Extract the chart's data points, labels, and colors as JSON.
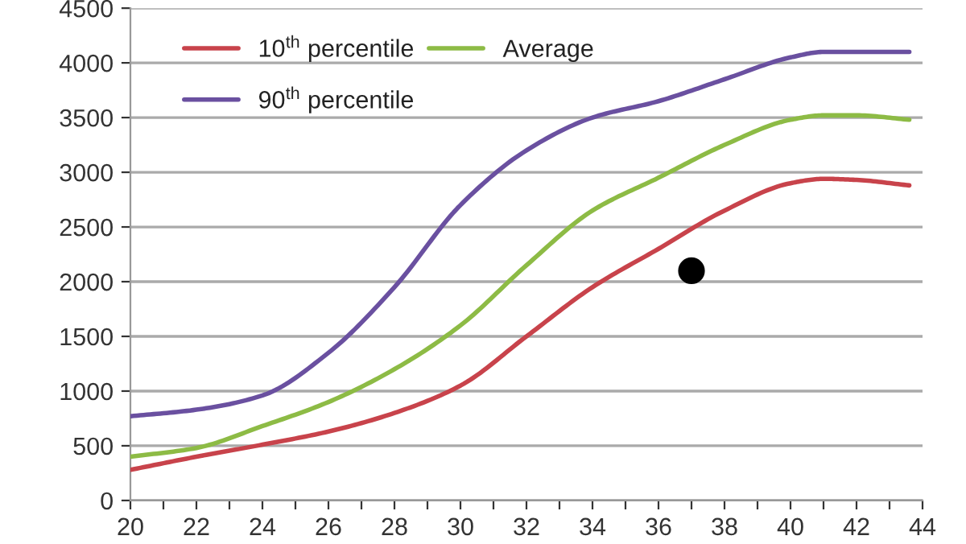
{
  "chart_data": {
    "type": "line",
    "xlim": [
      20,
      44
    ],
    "ylim": [
      0,
      4500
    ],
    "xticks": [
      20,
      {
        "value": 21,
        "label": null
      },
      22,
      {
        "value": 23,
        "label": null
      },
      24,
      {
        "value": 25,
        "label": null
      },
      26,
      {
        "value": 27,
        "label": null
      },
      28,
      {
        "value": 29,
        "label": null
      },
      30,
      {
        "value": 31,
        "label": null
      },
      32,
      {
        "value": 33,
        "label": null
      },
      34,
      {
        "value": 35,
        "label": null
      },
      36,
      {
        "value": 37,
        "label": null
      },
      38,
      {
        "value": 39,
        "label": null
      },
      40,
      {
        "value": 41,
        "label": null
      },
      42,
      {
        "value": 43,
        "label": null
      },
      44
    ],
    "yticks": [
      0,
      500,
      1000,
      1500,
      2000,
      2500,
      3000,
      3500,
      4000,
      4500
    ],
    "grid": "y",
    "legend": "top left",
    "marker": "none",
    "line_style": "solid",
    "series": [
      {
        "name": "10$^{th}$ percentile",
        "color": "#c8434b",
        "x": [
          20,
          22,
          24,
          26,
          28,
          30,
          32,
          34,
          36,
          38,
          40,
          41,
          42,
          43.6
        ],
        "values": [
          280,
          400,
          510,
          630,
          800,
          1050,
          1500,
          1950,
          2300,
          2650,
          2900,
          2940,
          2930,
          2880
        ]
      },
      {
        "name": "Average",
        "color": "#8dbb45",
        "x": [
          20,
          22,
          24,
          26,
          28,
          30,
          32,
          34,
          36,
          38,
          40,
          41,
          42,
          43.6
        ],
        "values": [
          400,
          480,
          680,
          900,
          1200,
          1600,
          2150,
          2650,
          2950,
          3250,
          3480,
          3520,
          3520,
          3480
        ]
      },
      {
        "name": "90$^{th}$ percentile",
        "color": "#6a50a0",
        "x": [
          20,
          22,
          24,
          26,
          28,
          30,
          32,
          34,
          36,
          38,
          40,
          41,
          42,
          43.6
        ],
        "values": [
          770,
          830,
          960,
          1350,
          1950,
          2700,
          3200,
          3500,
          3650,
          3850,
          4050,
          4100,
          4100,
          4100
        ]
      },
      {
        "type": "scatter",
        "color": "#000000",
        "marker": "circle",
        "x": [
          37
        ],
        "values": [
          2100
        ]
      }
    ]
  }
}
